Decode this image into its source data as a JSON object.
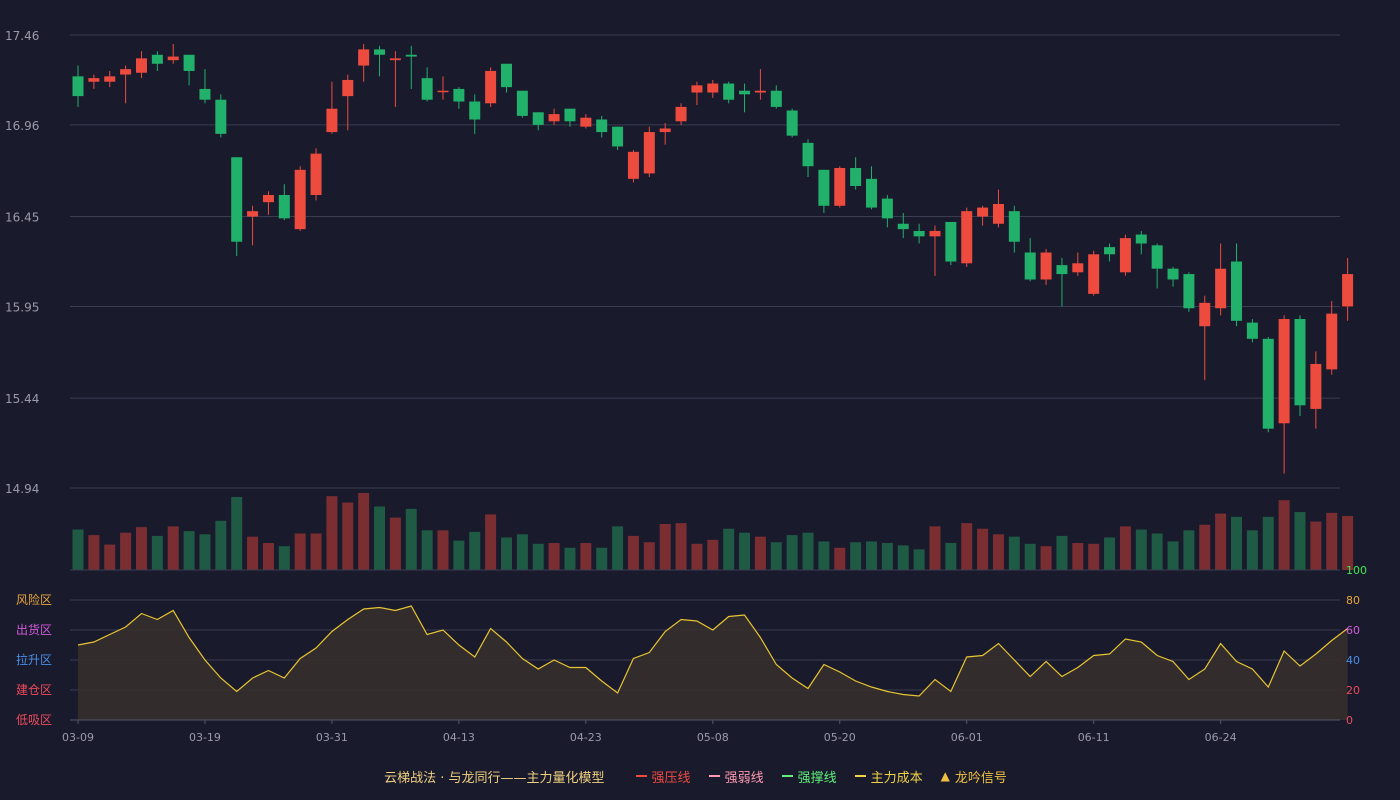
{
  "colors": {
    "background": "#191a2c",
    "grid": "#3a3c52",
    "axis_text": "#9a9aa8",
    "up": "#ee4b3f",
    "down": "#22b16a",
    "vol_up": "#7a2e31",
    "vol_down": "#1e5a44",
    "indicator_line": "#e8c431",
    "indicator_fill": "#35302c"
  },
  "legend": {
    "title": "云梯战法 · 与龙同行——主力量化模型",
    "items": [
      {
        "label": "强压线",
        "color": "#ee4b3f",
        "style": "solid"
      },
      {
        "label": "强弱线",
        "color": "#ff9ab0",
        "style": "dashed"
      },
      {
        "label": "强撑线",
        "color": "#5ef07a",
        "style": "solid"
      },
      {
        "label": "主力成本",
        "color": "#f0d24a",
        "style": "dashed"
      },
      {
        "label": "龙吟信号",
        "color": "#f0c040",
        "style": "triangle"
      }
    ]
  },
  "chart_data": [
    {
      "type": "candlestick",
      "yticks": [
        "17.46",
        "16.96",
        "16.45",
        "15.95",
        "15.44",
        "14.94"
      ],
      "ylim": [
        14.94,
        17.46
      ],
      "x_tick_labels": [
        {
          "index": 0,
          "label": "03-09"
        },
        {
          "index": 8,
          "label": "03-19"
        },
        {
          "index": 16,
          "label": "03-31"
        },
        {
          "index": 24,
          "label": "04-13"
        },
        {
          "index": 32,
          "label": "04-23"
        },
        {
          "index": 40,
          "label": "05-08"
        },
        {
          "index": 48,
          "label": "05-20"
        },
        {
          "index": 56,
          "label": "06-01"
        },
        {
          "index": 64,
          "label": "06-11"
        },
        {
          "index": 72,
          "label": "06-24"
        }
      ],
      "ohlc": [
        [
          17.23,
          17.12,
          17.29,
          17.06
        ],
        [
          17.2,
          17.22,
          17.24,
          17.16
        ],
        [
          17.2,
          17.23,
          17.26,
          17.17
        ],
        [
          17.24,
          17.27,
          17.29,
          17.08
        ],
        [
          17.25,
          17.33,
          17.37,
          17.22
        ],
        [
          17.35,
          17.3,
          17.37,
          17.26
        ],
        [
          17.32,
          17.34,
          17.41,
          17.3
        ],
        [
          17.35,
          17.26,
          17.34,
          17.18
        ],
        [
          17.16,
          17.1,
          17.27,
          17.08
        ],
        [
          17.1,
          16.91,
          17.13,
          16.89
        ],
        [
          16.78,
          16.31,
          16.78,
          16.23
        ],
        [
          16.45,
          16.48,
          16.51,
          16.29
        ],
        [
          16.53,
          16.57,
          16.59,
          16.46
        ],
        [
          16.57,
          16.44,
          16.63,
          16.43
        ],
        [
          16.38,
          16.71,
          16.73,
          16.37
        ],
        [
          16.57,
          16.8,
          16.83,
          16.54
        ],
        [
          16.92,
          17.05,
          17.2,
          16.91
        ],
        [
          17.12,
          17.21,
          17.24,
          16.93
        ],
        [
          17.29,
          17.38,
          17.41,
          17.2
        ],
        [
          17.38,
          17.35,
          17.4,
          17.23
        ],
        [
          17.32,
          17.33,
          17.37,
          17.06
        ],
        [
          17.35,
          17.34,
          17.4,
          17.16
        ],
        [
          17.22,
          17.1,
          17.28,
          17.09
        ],
        [
          17.15,
          17.15,
          17.23,
          17.1
        ],
        [
          17.16,
          17.09,
          17.17,
          17.05
        ],
        [
          17.09,
          16.99,
          17.13,
          16.91
        ],
        [
          17.08,
          17.26,
          17.28,
          17.06
        ],
        [
          17.3,
          17.17,
          17.3,
          17.14
        ],
        [
          17.15,
          17.01,
          17.15,
          17.0
        ],
        [
          17.03,
          16.96,
          17.03,
          16.93
        ],
        [
          16.98,
          17.02,
          17.05,
          16.96
        ],
        [
          17.05,
          16.98,
          17.05,
          16.95
        ],
        [
          16.95,
          17.0,
          17.02,
          16.94
        ],
        [
          16.99,
          16.92,
          17.01,
          16.89
        ],
        [
          16.95,
          16.84,
          16.95,
          16.82
        ],
        [
          16.66,
          16.81,
          16.82,
          16.64
        ],
        [
          16.69,
          16.92,
          16.95,
          16.67
        ],
        [
          16.92,
          16.94,
          16.97,
          16.85
        ],
        [
          16.98,
          17.06,
          17.08,
          16.96
        ],
        [
          17.14,
          17.18,
          17.2,
          17.07
        ],
        [
          17.14,
          17.19,
          17.21,
          17.11
        ],
        [
          17.19,
          17.1,
          17.2,
          17.08
        ],
        [
          17.15,
          17.13,
          17.19,
          17.03
        ],
        [
          17.14,
          17.15,
          17.27,
          17.1
        ],
        [
          17.15,
          17.06,
          17.18,
          17.05
        ],
        [
          17.04,
          16.9,
          17.05,
          16.89
        ],
        [
          16.86,
          16.73,
          16.88,
          16.67
        ],
        [
          16.71,
          16.51,
          16.71,
          16.47
        ],
        [
          16.51,
          16.72,
          16.73,
          16.5
        ],
        [
          16.72,
          16.62,
          16.78,
          16.6
        ],
        [
          16.66,
          16.5,
          16.73,
          16.49
        ],
        [
          16.55,
          16.44,
          16.57,
          16.39
        ],
        [
          16.41,
          16.38,
          16.47,
          16.33
        ],
        [
          16.37,
          16.34,
          16.41,
          16.3
        ],
        [
          16.34,
          16.37,
          16.4,
          16.12
        ],
        [
          16.42,
          16.2,
          16.42,
          16.18
        ],
        [
          16.19,
          16.48,
          16.5,
          16.17
        ],
        [
          16.45,
          16.5,
          16.51,
          16.4
        ],
        [
          16.41,
          16.52,
          16.6,
          16.39
        ],
        [
          16.48,
          16.31,
          16.51,
          16.25
        ],
        [
          16.25,
          16.1,
          16.33,
          16.09
        ],
        [
          16.1,
          16.25,
          16.27,
          16.07
        ],
        [
          16.18,
          16.13,
          16.22,
          15.95
        ],
        [
          16.14,
          16.19,
          16.25,
          16.12
        ],
        [
          16.02,
          16.24,
          16.26,
          16.01
        ],
        [
          16.28,
          16.24,
          16.3,
          16.2
        ],
        [
          16.14,
          16.33,
          16.35,
          16.12
        ],
        [
          16.35,
          16.3,
          16.37,
          16.24
        ],
        [
          16.29,
          16.16,
          16.3,
          16.05
        ],
        [
          16.16,
          16.1,
          16.17,
          16.06
        ],
        [
          16.13,
          15.94,
          16.14,
          15.92
        ],
        [
          15.84,
          15.97,
          16.01,
          15.54
        ],
        [
          15.94,
          16.16,
          16.3,
          15.9
        ],
        [
          16.2,
          15.87,
          16.3,
          15.84
        ],
        [
          15.86,
          15.77,
          15.88,
          15.75
        ],
        [
          15.77,
          15.27,
          15.78,
          15.25
        ],
        [
          15.3,
          15.88,
          15.9,
          15.02
        ],
        [
          15.88,
          15.4,
          15.9,
          15.34
        ],
        [
          15.38,
          15.63,
          15.7,
          15.27
        ],
        [
          15.6,
          15.91,
          15.98,
          15.57
        ],
        [
          15.95,
          16.13,
          16.22,
          15.87
        ]
      ],
      "volume": [
        51,
        44,
        32,
        47,
        54,
        43,
        55,
        49,
        45,
        62,
        92,
        42,
        34,
        30,
        46,
        46,
        93,
        85,
        97,
        80,
        66,
        77,
        50,
        50,
        37,
        48,
        70,
        41,
        45,
        33,
        34,
        28,
        34,
        28,
        55,
        43,
        35,
        58,
        59,
        33,
        38,
        52,
        47,
        42,
        35,
        44,
        47,
        36,
        28,
        35,
        36,
        34,
        31,
        26,
        55,
        34,
        59,
        52,
        45,
        42,
        33,
        30,
        43,
        34,
        33,
        41,
        55,
        51,
        46,
        36,
        50,
        57,
        71,
        67,
        50,
        67,
        88,
        73,
        61,
        72,
        68
      ]
    },
    {
      "type": "area",
      "name": "",
      "yticks": [
        "100",
        "80",
        "60",
        "40",
        "20",
        "0"
      ],
      "ylim": [
        0,
        100
      ],
      "zone_labels": [
        {
          "label": "风险区",
          "color": "#e8a63a"
        },
        {
          "label": "出货区",
          "color": "#d25adc"
        },
        {
          "label": "拉升区",
          "color": "#4a8fe8"
        },
        {
          "label": "建仓区",
          "color": "#ee4b5a"
        },
        {
          "label": "低吸区",
          "color": "#ee4b5a"
        }
      ],
      "ytick_colors": [
        "#39e84e",
        "#e8a63a",
        "#d25adc",
        "#4a8fe8",
        "#ee4b5a",
        "#ee4b5a"
      ],
      "values": [
        50,
        52,
        57,
        62,
        71,
        67,
        73,
        55,
        40,
        28,
        19,
        28,
        33,
        28,
        41,
        48,
        59,
        67,
        74,
        75,
        73,
        76,
        57,
        60,
        50,
        42,
        61,
        52,
        41,
        34,
        40,
        35,
        35,
        26,
        18,
        41,
        45,
        59,
        67,
        66,
        60,
        69,
        70,
        55,
        37,
        28,
        21,
        37,
        32,
        26,
        22,
        19,
        17,
        16,
        27,
        19,
        42,
        43,
        51,
        40,
        29,
        39,
        29,
        35,
        43,
        44,
        54,
        52,
        43,
        39,
        27,
        34,
        51,
        39,
        34,
        22,
        46,
        36,
        44,
        53,
        61
      ]
    }
  ]
}
